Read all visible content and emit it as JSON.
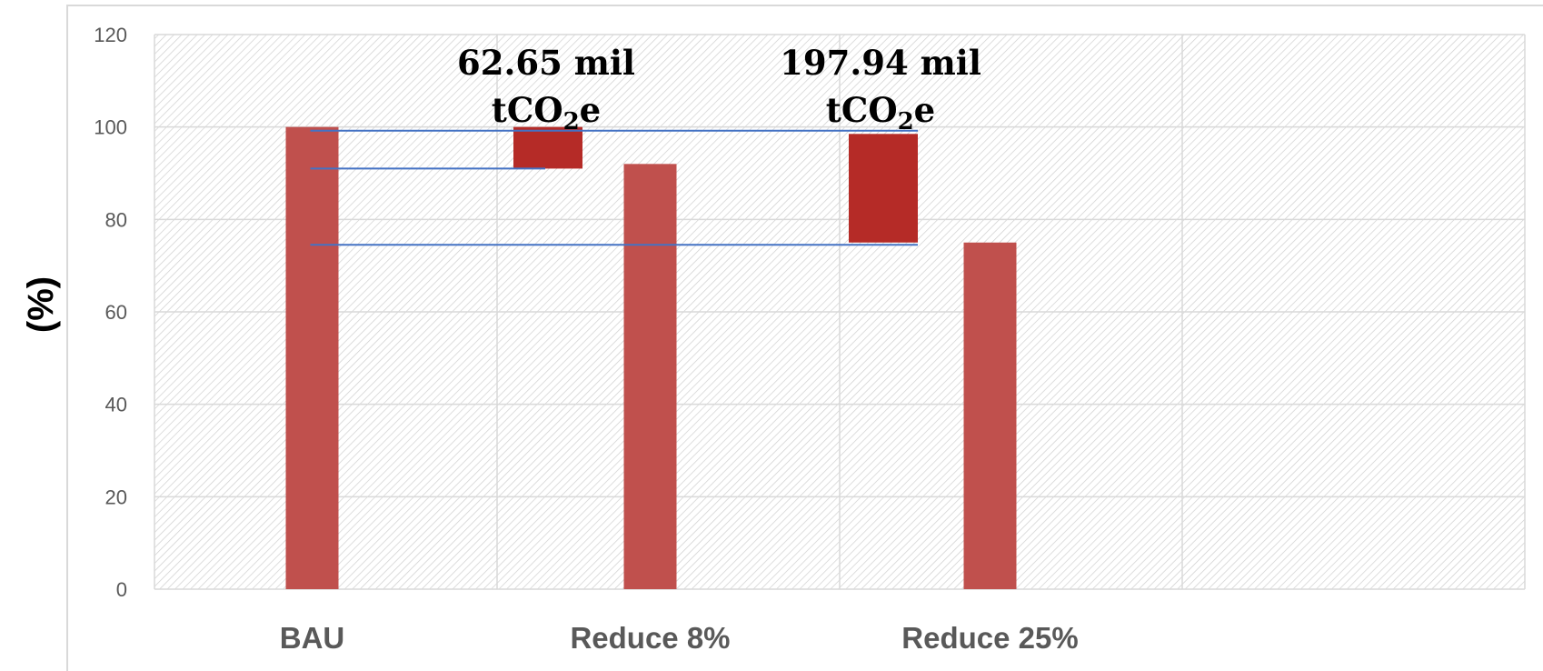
{
  "chart_data": {
    "type": "bar",
    "title": "",
    "xlabel": "",
    "ylabel": "(%)",
    "ylim": [
      0,
      120
    ],
    "yticks": [
      0,
      20,
      40,
      60,
      80,
      100,
      120
    ],
    "grid": true,
    "categories": [
      "BAU",
      "Reduce 8%",
      "Reduce 25%"
    ],
    "values": [
      100,
      92,
      75
    ],
    "reduction_blocks": [
      {
        "from": 91,
        "to": 100,
        "label_line1": "62.65 mil",
        "label_line2_main": "tCO",
        "label_line2_sub": "2",
        "label_line2_tail": "e"
      },
      {
        "from": 75,
        "to": 98.5,
        "label_line1": "197.94 mil",
        "label_line2_main": "tCO",
        "label_line2_sub": "2",
        "label_line2_tail": "e"
      }
    ],
    "reference_lines": [
      99.2,
      91,
      74.5
    ],
    "colors": {
      "bar": "#c0504d",
      "reduction": "#b52b27",
      "reference_line": "#4472c4",
      "grid": "#d9d9d9",
      "hatch": "#cfcfcf"
    }
  }
}
